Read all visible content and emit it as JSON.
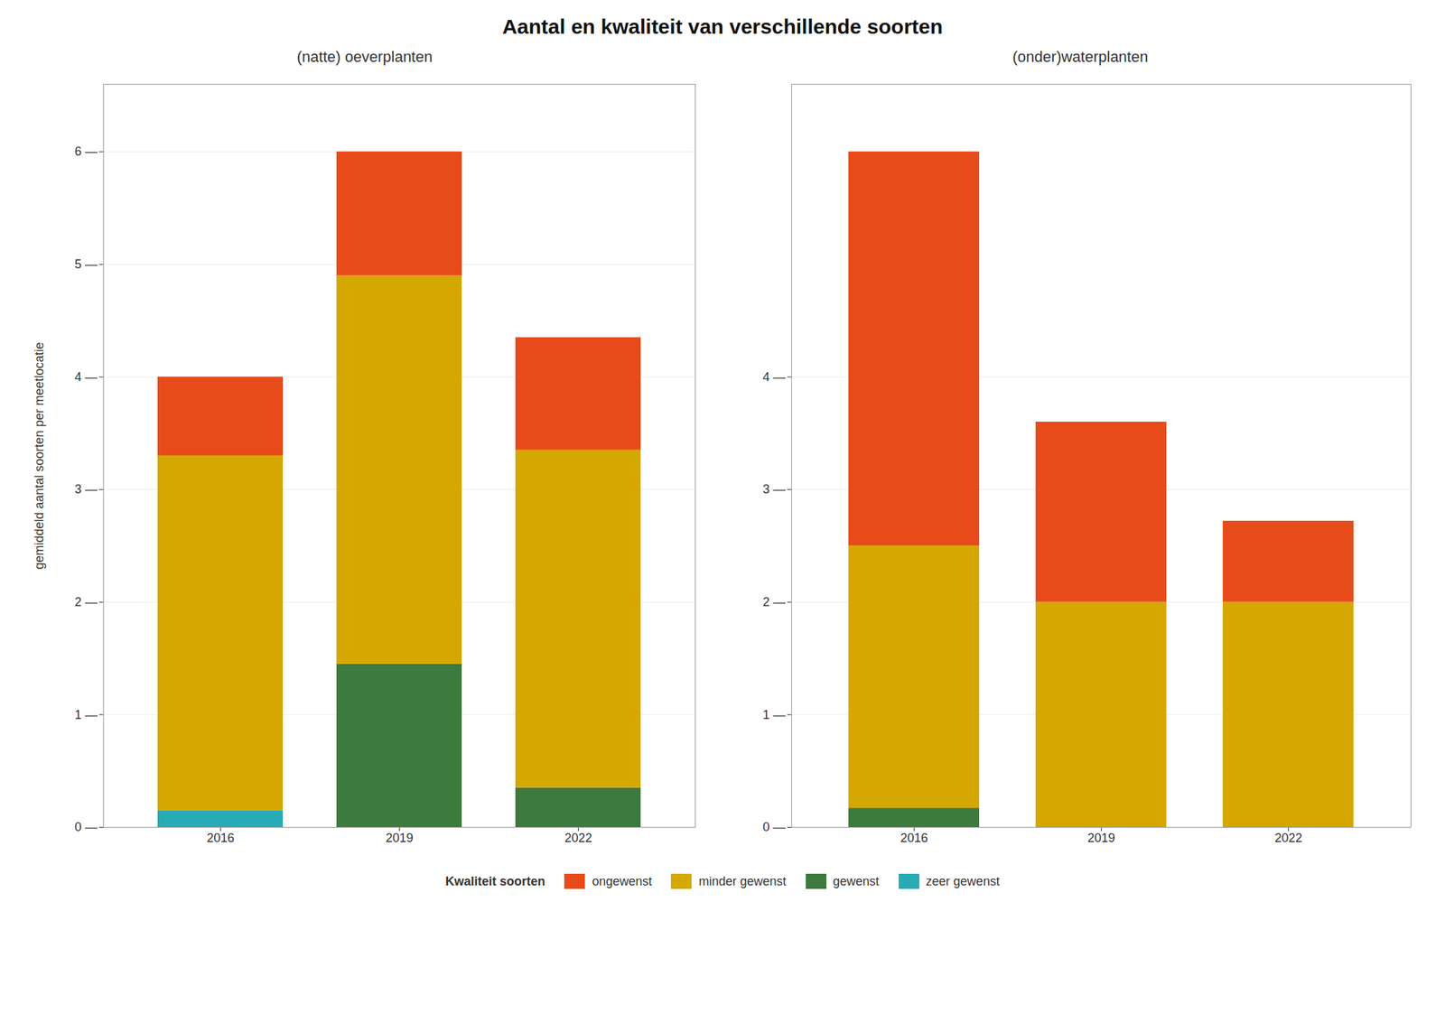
{
  "chart_data": [
    {
      "type": "bar",
      "stacked": true,
      "title": "Aantal en kwaliteit van verschillende soorten",
      "subtitle": "(natte) oeverplanten",
      "ylabel": "gemiddeld aantal soorten per meetlocatie",
      "legend_title": "Kwaliteit soorten",
      "legend": "bottom",
      "grid": true,
      "categories": [
        "2016",
        "2019",
        "2022"
      ],
      "series": [
        {
          "name": "zeer gewenst",
          "color": "#29ABB5",
          "values": [
            0.15,
            0.0,
            0.0
          ]
        },
        {
          "name": "gewenst",
          "color": "#3D7A3D",
          "values": [
            0.0,
            1.45,
            0.35
          ]
        },
        {
          "name": "minder gewenst",
          "color": "#D4A800",
          "values": [
            3.15,
            3.45,
            3.0
          ]
        },
        {
          "name": "ongewenst",
          "color": "#E84B1A",
          "values": [
            0.7,
            1.1,
            1.0
          ]
        }
      ],
      "ylim": [
        0,
        6.6
      ],
      "yticks": [
        {
          "value": 0,
          "label": "0 —"
        },
        {
          "value": 1,
          "label": "1 —"
        },
        {
          "value": 2,
          "label": "2 —"
        },
        {
          "value": 3,
          "label": "3 —"
        },
        {
          "value": 4,
          "label": "4 —"
        },
        {
          "value": 5,
          "label": "5 —"
        },
        {
          "value": 6,
          "label": "6 —"
        }
      ]
    },
    {
      "type": "bar",
      "stacked": true,
      "subtitle": "(onder)waterplanten",
      "grid": true,
      "categories": [
        "2016",
        "2019",
        "2022"
      ],
      "series": [
        {
          "name": "zeer gewenst",
          "color": "#29ABB5",
          "values": [
            0.0,
            0.0,
            0.0
          ]
        },
        {
          "name": "gewenst",
          "color": "#3D7A3D",
          "values": [
            0.17,
            0.0,
            0.0
          ]
        },
        {
          "name": "minder gewenst",
          "color": "#D4A800",
          "values": [
            2.33,
            2.0,
            2.0
          ]
        },
        {
          "name": "ongewenst",
          "color": "#E84B1A",
          "values": [
            3.5,
            1.6,
            0.72
          ]
        }
      ],
      "ylim": [
        0,
        6.6
      ],
      "yticks": [
        {
          "value": 0,
          "label": "0 —"
        },
        {
          "value": 1,
          "label": "1 —"
        },
        {
          "value": 2,
          "label": "2 —"
        },
        {
          "value": 3,
          "label": "3 —"
        },
        {
          "value": 4,
          "label": "4 —"
        }
      ]
    }
  ]
}
